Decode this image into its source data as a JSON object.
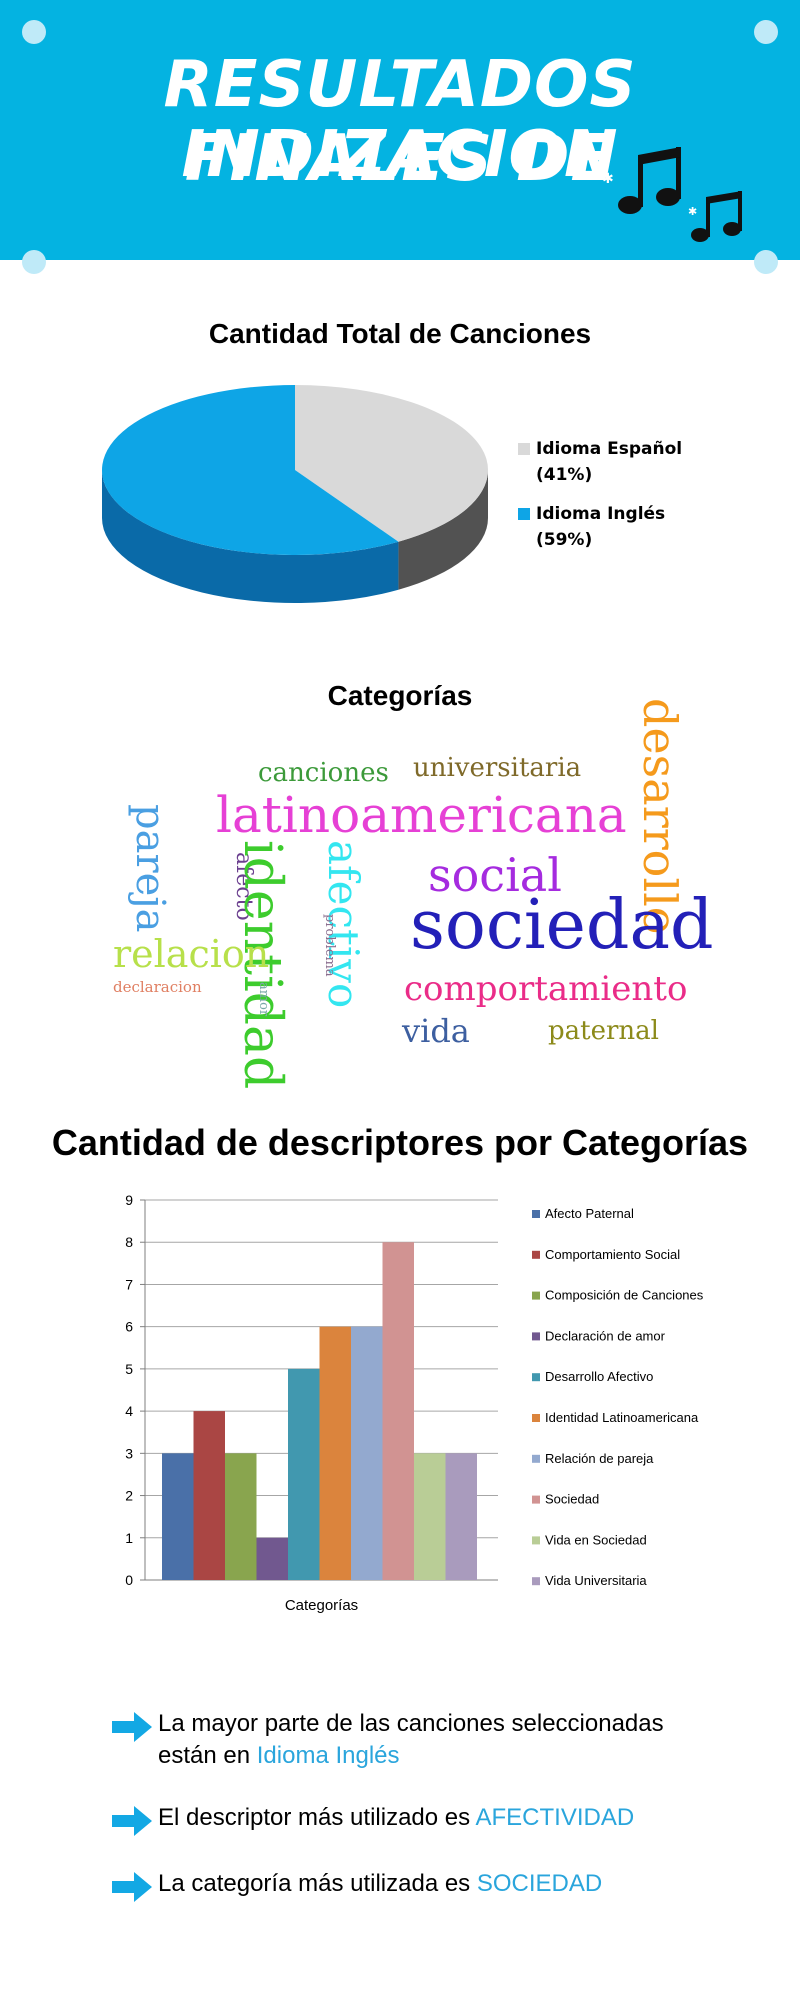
{
  "header": {
    "title_line_1": "RESULTADOS FINALES  DE",
    "title_line_2": "INDIZACION",
    "background_color": "#04b3e1",
    "decoration_icon": "music-notes-icon"
  },
  "pie_section": {
    "title": "Cantidad Total de Canciones"
  },
  "wordcloud_section": {
    "title": "Categorías",
    "words": [
      {
        "text": "desarrollo",
        "color": "#f59a1c"
      },
      {
        "text": "canciones",
        "color": "#3c9a3a"
      },
      {
        "text": "universitaria",
        "color": "#7f6a2a"
      },
      {
        "text": "latinoamericana",
        "color": "#e640d5"
      },
      {
        "text": "pareja",
        "color": "#4a9fe2"
      },
      {
        "text": "afecto",
        "color": "#6b3f8f"
      },
      {
        "text": "identidad",
        "color": "#3dcc2d"
      },
      {
        "text": "afectivo",
        "color": "#33e6f0"
      },
      {
        "text": "social",
        "color": "#a52bdf"
      },
      {
        "text": "sociedad",
        "color": "#2320b8"
      },
      {
        "text": "problema",
        "color": "#8a6d8e"
      },
      {
        "text": "relacion",
        "color": "#b7e04a"
      },
      {
        "text": "declaracion",
        "color": "#e07f62"
      },
      {
        "text": "amor",
        "color": "#7aa8a8"
      },
      {
        "text": "comportamiento",
        "color": "#ea2c88"
      },
      {
        "text": "vida",
        "color": "#3d5fa0"
      },
      {
        "text": "paternal",
        "color": "#8c8a1a"
      }
    ]
  },
  "bar_section": {
    "title": "Cantidad de descriptores por Categorías"
  },
  "chart_data": [
    {
      "type": "pie",
      "title": "Cantidad Total de Canciones",
      "style": "3d",
      "slices": [
        {
          "label": "Idioma Español",
          "pct_label": "(41%)",
          "value": 41,
          "color": "#d9d9d9"
        },
        {
          "label": "Idioma Inglés",
          "pct_label": "(59%)",
          "value": 59,
          "color": "#0ea5e6"
        }
      ],
      "legend": "right"
    },
    {
      "type": "bar",
      "title": "Cantidad de descriptores por Categorías",
      "xlabel": "Categorías",
      "ylabel": "",
      "ylim": [
        0,
        9
      ],
      "yticks": [
        "0",
        "1",
        "2",
        "3",
        "4",
        "5",
        "6",
        "7",
        "8",
        "9"
      ],
      "grid": true,
      "legend": "right",
      "series": [
        {
          "name": "Afecto Paternal",
          "value": 3,
          "color": "#4a70a8"
        },
        {
          "name": "Comportamiento Social",
          "value": 4,
          "color": "#aa4644"
        },
        {
          "name": "Composición de Canciones",
          "value": 3,
          "color": "#89a54e"
        },
        {
          "name": "Declaración de amor",
          "value": 1,
          "color": "#71588f"
        },
        {
          "name": "Desarrollo Afectivo",
          "value": 5,
          "color": "#4198af"
        },
        {
          "name": "Identidad Latinoamericana",
          "value": 6,
          "color": "#db843d"
        },
        {
          "name": "Relación de pareja",
          "value": 6,
          "color": "#93a9cf"
        },
        {
          "name": "Sociedad",
          "value": 8,
          "color": "#d19392"
        },
        {
          "name": "Vida en Sociedad",
          "value": 3,
          "color": "#b9cd96"
        },
        {
          "name": "Vida Universitaria",
          "value": 3,
          "color": "#a99bbd"
        }
      ]
    }
  ],
  "takeaways": [
    {
      "pre": "La mayor parte de las canciones seleccionadas",
      "pre2": "están en ",
      "highlight": "Idioma Inglés"
    },
    {
      "pre": "El descriptor más utilizado es ",
      "highlight": "AFECTIVIDAD"
    },
    {
      "pre": "La categoría más utilizada es ",
      "highlight": "SOCIEDAD"
    }
  ],
  "accent_color": "#2aa5dc",
  "arrow_color": "#13a8e4"
}
